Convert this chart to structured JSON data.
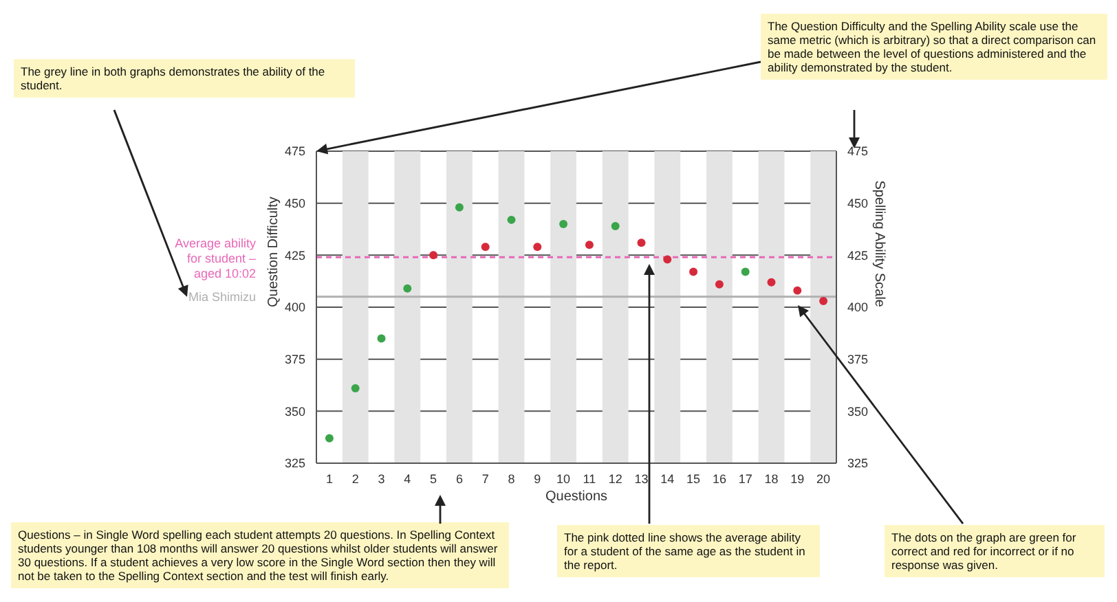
{
  "chart_data": {
    "type": "scatter",
    "xlabel": "Questions",
    "ylabel": "Question Difficulty",
    "y2label": "Spelling Ability Scale",
    "x": [
      1,
      2,
      3,
      4,
      5,
      6,
      7,
      8,
      9,
      10,
      11,
      12,
      13,
      14,
      15,
      16,
      17,
      18,
      19,
      20
    ],
    "values": [
      337,
      361,
      385,
      409,
      425,
      448,
      429,
      442,
      429,
      440,
      430,
      439,
      431,
      423,
      417,
      411,
      417,
      412,
      408,
      403
    ],
    "colors": [
      "#3aa54a",
      "#3aa54a",
      "#3aa54a",
      "#3aa54a",
      "#d62a3c",
      "#3aa54a",
      "#d62a3c",
      "#3aa54a",
      "#d62a3c",
      "#3aa54a",
      "#d62a3c",
      "#3aa54a",
      "#d62a3c",
      "#d62a3c",
      "#d62a3c",
      "#d62a3c",
      "#3aa54a",
      "#d62a3c",
      "#d62a3c",
      "#d62a3c"
    ],
    "marker": "circle",
    "xlim": [
      0.5,
      20.5
    ],
    "xticks": [
      1,
      2,
      3,
      4,
      5,
      6,
      7,
      8,
      9,
      10,
      11,
      12,
      13,
      14,
      15,
      16,
      17,
      18,
      19,
      20
    ],
    "ylim": [
      325,
      475
    ],
    "yticks": [
      325,
      350,
      375,
      400,
      425,
      450,
      475
    ],
    "y2lim": [
      325,
      475
    ],
    "y2ticks": [
      325,
      350,
      375,
      400,
      425,
      450,
      475
    ],
    "grid": "y",
    "ref_lines": [
      {
        "axis": "y",
        "value": 424,
        "color": "#e868b8",
        "line_style": "dashed"
      },
      {
        "axis": "y",
        "value": 405,
        "label": "Mia Shimizu",
        "color": "#b0b0b0",
        "line_style": "solid"
      }
    ],
    "bands": [
      {
        "axis": "x",
        "from": 1.5,
        "to": 2.5,
        "color": "#e4e4e4"
      },
      {
        "axis": "x",
        "from": 3.5,
        "to": 4.5,
        "color": "#e4e4e4"
      },
      {
        "axis": "x",
        "from": 5.5,
        "to": 6.5,
        "color": "#e4e4e4"
      },
      {
        "axis": "x",
        "from": 7.5,
        "to": 8.5,
        "color": "#e4e4e4"
      },
      {
        "axis": "x",
        "from": 9.5,
        "to": 10.5,
        "color": "#e4e4e4"
      },
      {
        "axis": "x",
        "from": 11.5,
        "to": 12.5,
        "color": "#e4e4e4"
      },
      {
        "axis": "x",
        "from": 13.5,
        "to": 14.5,
        "color": "#e4e4e4"
      },
      {
        "axis": "x",
        "from": 15.5,
        "to": 16.5,
        "color": "#e4e4e4"
      },
      {
        "axis": "x",
        "from": 17.5,
        "to": 18.5,
        "color": "#e4e4e4"
      },
      {
        "axis": "x",
        "from": 19.5,
        "to": 20.5,
        "color": "#e4e4e4"
      }
    ],
    "annotations": [
      "The grey line in both graphs demonstrates the ability of the student.",
      "The Question Difficulty and the Spelling Ability scale use the same metric (which is arbitrary) so that a direct comparison can be made between the level of questions administered and the ability demonstrated by the student.",
      "Questions – in Single Word spelling each student attempts 20 questions. In Spelling Context students younger than 108 months will answer 20 questions whilst older students will answer 30 questions. If a student achieves a very low score in the Single Word section then they will not be taken to the Spelling Context section and the test will finish early.",
      "The pink dotted line shows the average ability for a student of the same age as the student in the report.",
      "The dots on the graph are green for correct and red for incorrect or if no response was given.",
      "Average ability for student – aged 10:02"
    ]
  }
}
